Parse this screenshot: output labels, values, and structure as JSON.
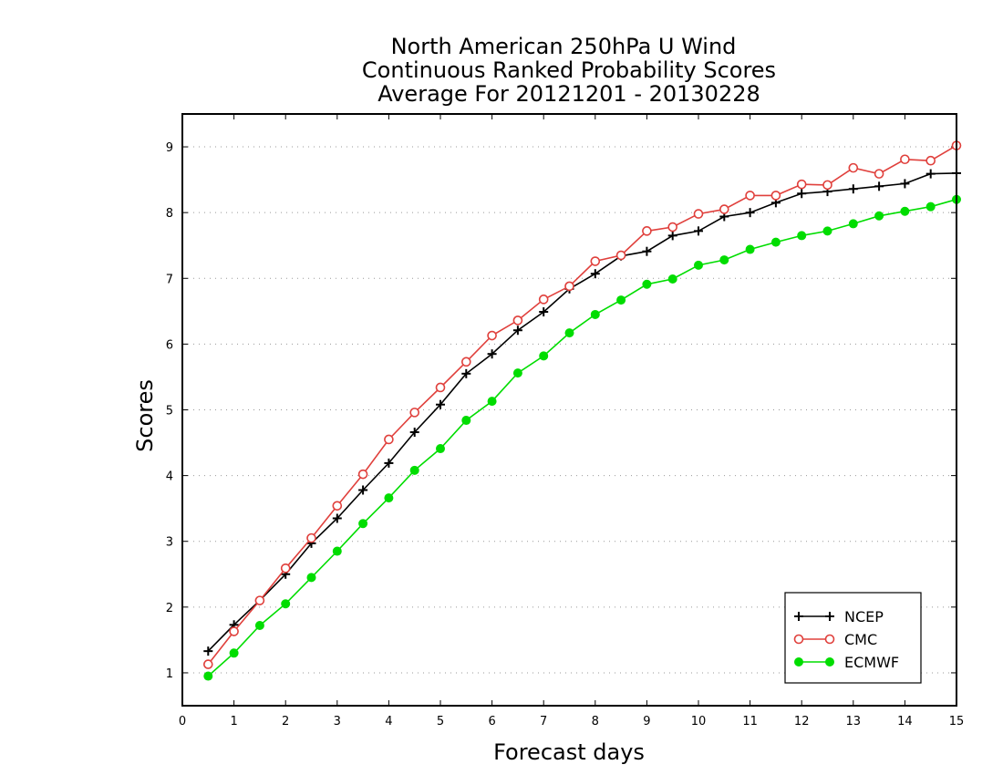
{
  "chart_data": {
    "type": "line",
    "title": [
      "North American 250hPa U Wind",
      "Continuous Ranked Probability Scores",
      "Average For 20121201 - 20130228"
    ],
    "xlabel": "Forecast days",
    "ylabel": "Scores",
    "xlim": [
      0,
      15
    ],
    "ylim": [
      0.5,
      9.5
    ],
    "xticks": [
      0,
      1,
      2,
      3,
      4,
      5,
      6,
      7,
      8,
      9,
      10,
      11,
      12,
      13,
      14,
      15
    ],
    "yticks": [
      1,
      2,
      3,
      4,
      5,
      6,
      7,
      8,
      9
    ],
    "grid": "horizontal dotted",
    "legend_position": "bottom-right",
    "x": [
      0.5,
      1,
      1.5,
      2,
      2.5,
      3,
      3.5,
      4,
      4.5,
      5,
      5.5,
      6,
      6.5,
      7,
      7.5,
      8,
      8.5,
      9,
      9.5,
      10,
      10.5,
      11,
      11.5,
      12,
      12.5,
      13,
      13.5,
      14,
      14.5,
      15
    ],
    "series": [
      {
        "name": "NCEP",
        "color": "#000000",
        "marker": "plus",
        "values": [
          1.33,
          1.73,
          2.1,
          2.5,
          2.97,
          3.35,
          3.78,
          4.19,
          4.66,
          5.08,
          5.55,
          5.85,
          6.21,
          6.49,
          6.84,
          7.07,
          7.34,
          7.41,
          7.65,
          7.72,
          7.94,
          8.0,
          8.15,
          8.29,
          8.32,
          8.36,
          8.4,
          8.44,
          8.59,
          8.6
        ]
      },
      {
        "name": "CMC",
        "color": "#e0403c",
        "marker": "open-circle",
        "values": [
          1.13,
          1.63,
          2.1,
          2.59,
          3.05,
          3.54,
          4.02,
          4.55,
          4.96,
          5.34,
          5.73,
          6.13,
          6.36,
          6.68,
          6.88,
          7.26,
          7.35,
          7.72,
          7.78,
          7.98,
          8.05,
          8.26,
          8.26,
          8.43,
          8.42,
          8.68,
          8.59,
          8.81,
          8.79,
          9.02
        ]
      },
      {
        "name": "ECMWF",
        "color": "#00dd00",
        "marker": "filled-circle",
        "values": [
          0.95,
          1.3,
          1.72,
          2.05,
          2.45,
          2.85,
          3.27,
          3.66,
          4.08,
          4.41,
          4.84,
          5.13,
          5.56,
          5.82,
          6.17,
          6.45,
          6.67,
          6.91,
          6.99,
          7.2,
          7.28,
          7.44,
          7.55,
          7.65,
          7.72,
          7.83,
          7.95,
          8.02,
          8.09,
          8.2
        ]
      }
    ]
  }
}
